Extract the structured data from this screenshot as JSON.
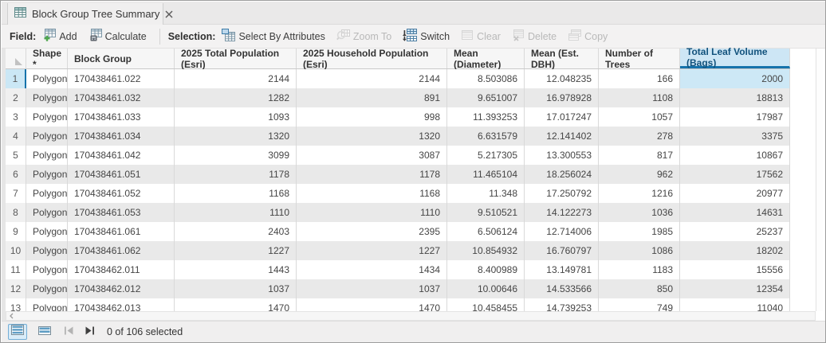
{
  "window": {
    "tab_title": "Block Group Tree Summary"
  },
  "toolbar": {
    "field_label": "Field:",
    "add": "Add",
    "calculate": "Calculate",
    "selection_label": "Selection:",
    "select_by_attributes": "Select By Attributes",
    "zoom_to": "Zoom To",
    "switch": "Switch",
    "clear": "Clear",
    "delete": "Delete",
    "copy": "Copy"
  },
  "table": {
    "columns": [
      "Shape *",
      "Block Group",
      "2025 Total Population (Esri)",
      "2025 Household Population (Esri)",
      "Mean (Diameter)",
      "Mean (Est. DBH)",
      "Number of Trees",
      "Total Leaf Volume (Bags)"
    ],
    "selected_column": "Total Leaf Volume (Bags)",
    "active_cell": {
      "row": "1",
      "column": "Total Leaf Volume (Bags)"
    },
    "rows": [
      [
        "1",
        "Polygon",
        "170438461.022",
        "2144",
        "2144",
        "8.503086",
        "12.048235",
        "166",
        "2000"
      ],
      [
        "2",
        "Polygon",
        "170438461.032",
        "1282",
        "891",
        "9.651007",
        "16.978928",
        "1108",
        "18813"
      ],
      [
        "3",
        "Polygon",
        "170438461.033",
        "1093",
        "998",
        "11.393253",
        "17.017247",
        "1057",
        "17987"
      ],
      [
        "4",
        "Polygon",
        "170438461.034",
        "1320",
        "1320",
        "6.631579",
        "12.141402",
        "278",
        "3375"
      ],
      [
        "5",
        "Polygon",
        "170438461.042",
        "3099",
        "3087",
        "5.217305",
        "13.300553",
        "817",
        "10867"
      ],
      [
        "6",
        "Polygon",
        "170438461.051",
        "1178",
        "1178",
        "11.465104",
        "18.256024",
        "962",
        "17562"
      ],
      [
        "7",
        "Polygon",
        "170438461.052",
        "1168",
        "1168",
        "11.348",
        "17.250792",
        "1216",
        "20977"
      ],
      [
        "8",
        "Polygon",
        "170438461.053",
        "1110",
        "1110",
        "9.510521",
        "14.122273",
        "1036",
        "14631"
      ],
      [
        "9",
        "Polygon",
        "170438461.061",
        "2403",
        "2395",
        "6.506124",
        "12.714006",
        "1985",
        "25237"
      ],
      [
        "10",
        "Polygon",
        "170438461.062",
        "1227",
        "1227",
        "10.854932",
        "16.760797",
        "1086",
        "18202"
      ],
      [
        "11",
        "Polygon",
        "170438462.011",
        "1443",
        "1434",
        "8.400989",
        "13.149781",
        "1183",
        "15556"
      ],
      [
        "12",
        "Polygon",
        "170438462.012",
        "1037",
        "1037",
        "10.00646",
        "14.533566",
        "850",
        "12354"
      ],
      [
        "13",
        "Polygon",
        "170438462.013",
        "1470",
        "1470",
        "10.458455",
        "14.739253",
        "749",
        "11040"
      ]
    ]
  },
  "status_bar": {
    "selection_text": "0 of 106 selected"
  },
  "icons": {
    "tab_icon": "table-grid",
    "close_icon": "x",
    "add_icon": "table-with-green-plus",
    "calculate_icon": "table-with-calculator",
    "select_by_attributes_icon": "table-with-selection-square",
    "zoom_to_icon": "magnifier-over-table",
    "switch_icon": "switch-selection-tables",
    "clear_icon": "table-plain",
    "delete_icon": "table-with-red-x",
    "copy_icon": "two-tables",
    "show_all_records_icon": "table-rows-blue",
    "show_selected_records_icon": "table-rows-blue-small",
    "first_record_icon": "bar-with-left-triangle",
    "last_record_icon": "right-triangle-with-bar",
    "hscroll_left_icon": "chevron-left"
  },
  "colors": {
    "accent_blue": "#1673ab",
    "selection_fill": "#cde8f6",
    "selected_header_bg": "#cde6f5",
    "selected_header_text": "#12527c",
    "row_stripe": "#e9e9e9",
    "tabbar_bg": "#eae9e9",
    "toolbar_bg": "#f3f2f2",
    "status_bg": "#f0efef"
  }
}
